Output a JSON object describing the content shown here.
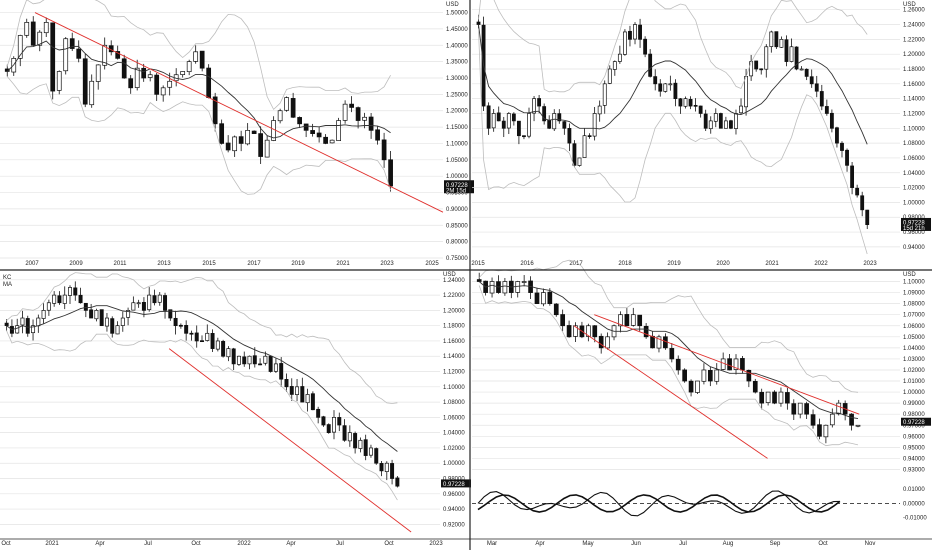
{
  "colors": {
    "candle": "#111111",
    "candle_down_fill": "#111111",
    "candle_up_fill": "#ffffff",
    "grid": "#e3e3e3",
    "trendline": "#e0302d",
    "ma": "#333333",
    "band": "#bdbdbd",
    "separator": "#222222",
    "price_box": "#111111"
  },
  "chart_data": [
    {
      "id": "top-left",
      "type": "candlestick",
      "timeframe": "quarterly",
      "currency_label": "USD",
      "y_ticks": [
        "1.50000",
        "1.45000",
        "1.40000",
        "1.35000",
        "1.30000",
        "1.25000",
        "1.20000",
        "1.15000",
        "1.10000",
        "1.05000",
        "1.00000",
        "0.95000",
        "0.90000",
        "0.85000",
        "0.80000",
        "0.75000"
      ],
      "ylim": [
        0.75,
        1.52
      ],
      "x_ticks": [
        "2007",
        "2009",
        "2011",
        "2013",
        "2015",
        "2017",
        "2019",
        "2021",
        "2023",
        "2025"
      ],
      "last_price": "0.97228",
      "countdown": "2M 15d",
      "close_series": [
        1.32,
        1.36,
        1.43,
        1.47,
        1.4,
        1.44,
        1.47,
        1.26,
        1.32,
        1.42,
        1.39,
        1.36,
        1.22,
        1.29,
        1.34,
        1.4,
        1.38,
        1.36,
        1.3,
        1.27,
        1.33,
        1.3,
        1.31,
        1.25,
        1.27,
        1.29,
        1.31,
        1.32,
        1.35,
        1.38,
        1.33,
        1.24,
        1.16,
        1.1,
        1.08,
        1.12,
        1.1,
        1.14,
        1.13,
        1.06,
        1.11,
        1.17,
        1.2,
        1.24,
        1.18,
        1.16,
        1.14,
        1.13,
        1.12,
        1.1,
        1.11,
        1.17,
        1.22,
        1.21,
        1.17,
        1.18,
        1.14,
        1.11,
        1.05,
        0.97
      ],
      "trendline": [
        [
          2007.8,
          1.5
        ],
        [
          2025.3,
          0.89
        ]
      ],
      "indicators": [
        "moving-average",
        "bands"
      ]
    },
    {
      "id": "top-right",
      "type": "candlestick",
      "timeframe": "monthly",
      "currency_label": "USD",
      "y_ticks": [
        "1.26000",
        "1.24000",
        "1.22000",
        "1.20000",
        "1.18000",
        "1.16000",
        "1.14000",
        "1.12000",
        "1.10000",
        "1.08000",
        "1.06000",
        "1.04000",
        "1.02000",
        "1.00000",
        "0.98000",
        "0.96000",
        "0.94000"
      ],
      "ylim": [
        0.925,
        1.265
      ],
      "x_ticks": [
        "2015",
        "2016",
        "2017",
        "2018",
        "2019",
        "2020",
        "2021",
        "2022",
        "2023"
      ],
      "last_price": "0.97228",
      "countdown": "15d 21h",
      "close_series": [
        1.24,
        1.13,
        1.1,
        1.12,
        1.11,
        1.1,
        1.12,
        1.11,
        1.09,
        1.09,
        1.12,
        1.14,
        1.13,
        1.11,
        1.1,
        1.12,
        1.11,
        1.1,
        1.08,
        1.05,
        1.06,
        1.09,
        1.09,
        1.12,
        1.13,
        1.16,
        1.18,
        1.19,
        1.2,
        1.23,
        1.22,
        1.24,
        1.22,
        1.2,
        1.17,
        1.16,
        1.15,
        1.16,
        1.16,
        1.14,
        1.13,
        1.14,
        1.13,
        1.13,
        1.12,
        1.1,
        1.11,
        1.12,
        1.1,
        1.11,
        1.1,
        1.12,
        1.13,
        1.17,
        1.19,
        1.18,
        1.18,
        1.21,
        1.23,
        1.21,
        1.22,
        1.19,
        1.21,
        1.18,
        1.18,
        1.17,
        1.16,
        1.15,
        1.13,
        1.12,
        1.1,
        1.08,
        1.07,
        1.05,
        1.02,
        1.01,
        0.99,
        0.97
      ],
      "indicators": [
        "moving-average",
        "bands"
      ]
    },
    {
      "id": "bottom-left",
      "type": "candlestick",
      "timeframe": "weekly",
      "legend": [
        "KC",
        "MA"
      ],
      "currency_label": "USD",
      "y_ticks": [
        "1.24000",
        "1.22000",
        "1.20000",
        "1.18000",
        "1.16000",
        "1.14000",
        "1.12000",
        "1.10000",
        "1.08000",
        "1.06000",
        "1.04000",
        "1.02000",
        "1.00000",
        "0.98000",
        "0.96000",
        "0.94000",
        "0.92000"
      ],
      "ylim": [
        0.91,
        1.245
      ],
      "x_ticks": [
        "Oct",
        "2021",
        "Apr",
        "Jul",
        "Oct",
        "2022",
        "Apr",
        "Jul",
        "Oct",
        "2023"
      ],
      "last_price": "0.97228",
      "close_series": [
        1.18,
        1.17,
        1.18,
        1.19,
        1.17,
        1.18,
        1.19,
        1.2,
        1.21,
        1.22,
        1.21,
        1.22,
        1.23,
        1.22,
        1.21,
        1.2,
        1.19,
        1.2,
        1.18,
        1.19,
        1.17,
        1.18,
        1.19,
        1.2,
        1.21,
        1.21,
        1.2,
        1.22,
        1.21,
        1.22,
        1.2,
        1.19,
        1.18,
        1.18,
        1.17,
        1.17,
        1.16,
        1.16,
        1.17,
        1.15,
        1.16,
        1.14,
        1.15,
        1.13,
        1.14,
        1.13,
        1.14,
        1.13,
        1.13,
        1.14,
        1.12,
        1.13,
        1.11,
        1.1,
        1.09,
        1.1,
        1.08,
        1.09,
        1.07,
        1.06,
        1.05,
        1.04,
        1.06,
        1.05,
        1.03,
        1.04,
        1.02,
        1.03,
        1.01,
        1.02,
        1.0,
        0.99,
        1.0,
        0.98,
        0.97
      ],
      "trendline": [
        [
          1.23,
          1.15
        ],
        [
          2.99,
          0.91
        ]
      ],
      "indicators": [
        "keltner-channel",
        "moving-average"
      ]
    },
    {
      "id": "bottom-right",
      "type": "candlestick",
      "timeframe": "daily",
      "currency_label": "USD",
      "y_ticks": [
        "1.10000",
        "1.09000",
        "1.08000",
        "1.07000",
        "1.06000",
        "1.05000",
        "1.04000",
        "1.03000",
        "1.02000",
        "1.01000",
        "1.00000",
        "0.99000",
        "0.98000",
        "0.97000",
        "0.96000",
        "0.95000",
        "0.94000",
        "0.93000"
      ],
      "ylim": [
        0.925,
        1.105
      ],
      "x_ticks": [
        "Mar",
        "Apr",
        "May",
        "Jun",
        "Jul",
        "Aug",
        "Sep",
        "Oct",
        "Nov"
      ],
      "last_price": "0.97228",
      "close_series": [
        1.1,
        1.09,
        1.1,
        1.09,
        1.1,
        1.09,
        1.1,
        1.1,
        1.09,
        1.08,
        1.09,
        1.08,
        1.07,
        1.06,
        1.05,
        1.06,
        1.05,
        1.06,
        1.05,
        1.04,
        1.05,
        1.06,
        1.07,
        1.06,
        1.07,
        1.06,
        1.05,
        1.04,
        1.05,
        1.04,
        1.03,
        1.02,
        1.01,
        1.0,
        1.01,
        1.02,
        1.01,
        1.02,
        1.03,
        1.02,
        1.03,
        1.02,
        1.01,
        1.0,
        0.99,
        1.0,
        0.99,
        1.0,
        0.99,
        0.98,
        0.99,
        0.98,
        0.97,
        0.96,
        0.97,
        0.98,
        0.99,
        0.98,
        0.97,
        0.97
      ],
      "trendlines": [
        [
          [
            1.0,
            1.06
          ],
          [
            2.9,
            0.94
          ]
        ],
        [
          [
            1.2,
            1.07
          ],
          [
            3.8,
            0.98
          ]
        ]
      ],
      "oscillator": {
        "y_ticks": [
          "0.01000",
          "0.00000",
          "-0.01000"
        ],
        "ylim": [
          -0.02,
          0.015
        ],
        "zero_line": "dashed"
      },
      "indicators": [
        "moving-average",
        "bands",
        "oscillator"
      ]
    }
  ]
}
